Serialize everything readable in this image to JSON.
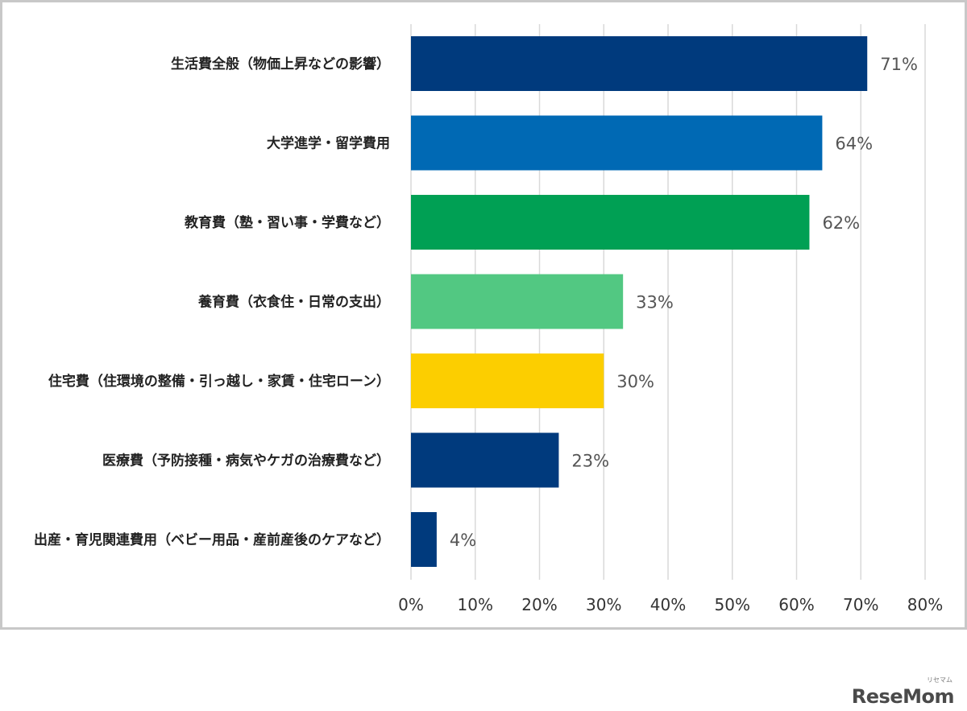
{
  "chart_data": {
    "type": "bar",
    "orientation": "horizontal",
    "categories": [
      "生活費全般（物価上昇などの影響）",
      "大学進学・留学費用",
      "教育費（塾・習い事・学費など）",
      "養育費（衣食住・日常の支出）",
      "住宅費（住環境の整備・引っ越し・家賃・住宅ローン）",
      "医療費（予防接種・病気やケガの治療費など）",
      "出産・育児関連費用（ベビー用品・産前産後のケアなど）"
    ],
    "values": [
      71,
      64,
      62,
      33,
      30,
      23,
      4
    ],
    "value_labels": [
      "71%",
      "64%",
      "62%",
      "33%",
      "30%",
      "23%",
      "4%"
    ],
    "colors": [
      "#003A7D",
      "#0069B4",
      "#00A054",
      "#52C882",
      "#FCCE00",
      "#003A7D",
      "#003A7D"
    ],
    "xlim": [
      0,
      80
    ],
    "xticks": [
      0,
      10,
      20,
      30,
      40,
      50,
      60,
      70,
      80
    ],
    "xtick_labels": [
      "0%",
      "10%",
      "20%",
      "30%",
      "40%",
      "50%",
      "60%",
      "70%",
      "80%"
    ],
    "grid": true,
    "title": "",
    "xlabel": "",
    "ylabel": ""
  },
  "logo": {
    "text": "ReseMom",
    "subtext": "リセマム"
  }
}
